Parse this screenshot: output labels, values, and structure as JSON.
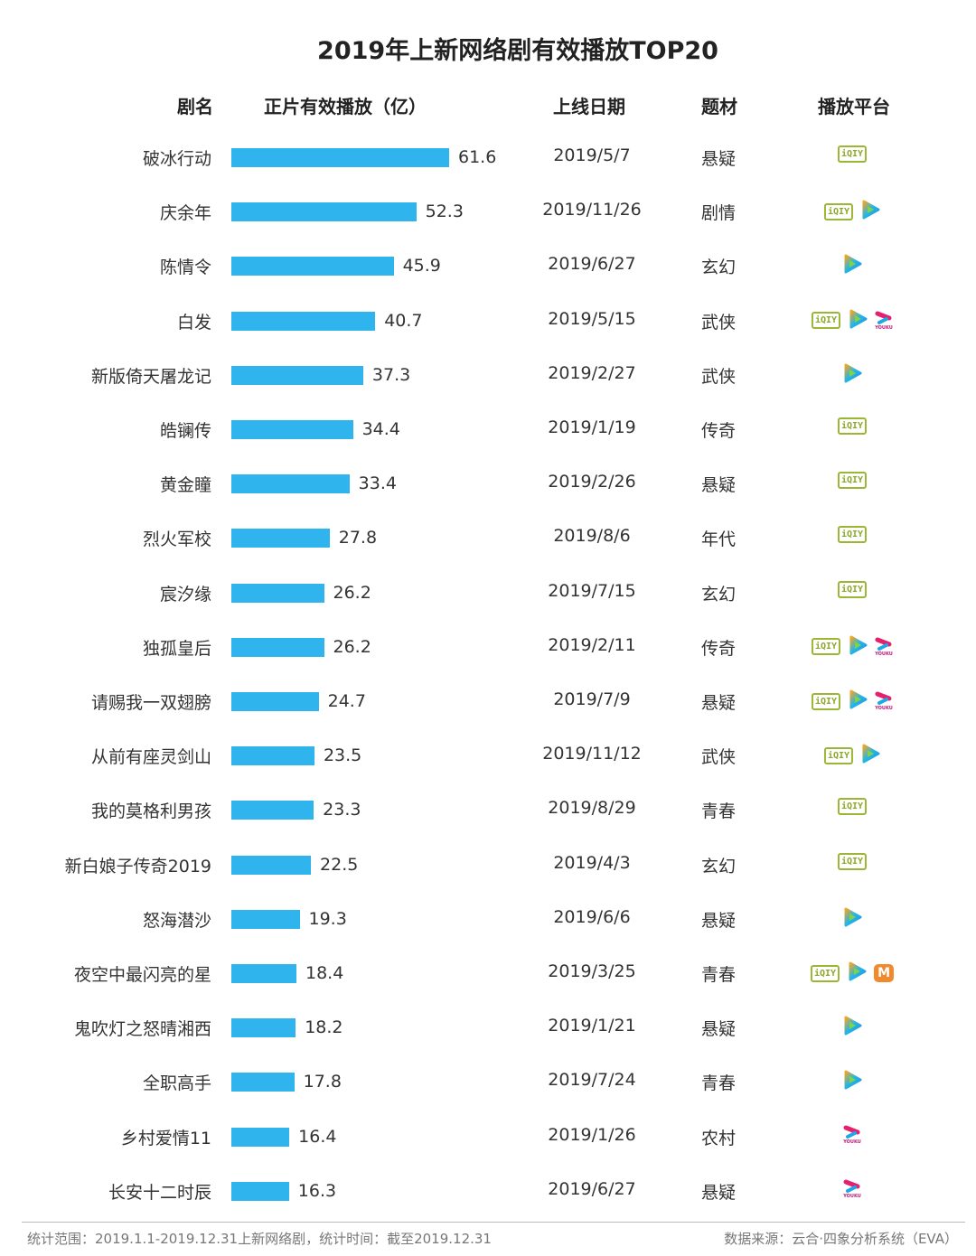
{
  "chart_data": {
    "type": "bar",
    "title": "2019年上新网络剧有效播放TOP20",
    "columns": [
      "剧名",
      "正片有效播放（亿）",
      "上线日期",
      "题材",
      "播放平台"
    ],
    "categories": [
      "破冰行动",
      "庆余年",
      "陈情令",
      "白发",
      "新版倚天屠龙记",
      "皓镧传",
      "黄金瞳",
      "烈火军校",
      "宸汐缘",
      "独孤皇后",
      "请赐我一双翅膀",
      "从前有座灵剑山",
      "我的莫格利男孩",
      "新白娘子传奇2019",
      "怒海潜沙",
      "夜空中最闪亮的星",
      "鬼吹灯之怒晴湘西",
      "全职高手",
      "乡村爱情11",
      "长安十二时辰"
    ],
    "values": [
      61.6,
      52.3,
      45.9,
      40.7,
      37.3,
      34.4,
      33.4,
      27.8,
      26.2,
      26.2,
      24.7,
      23.5,
      23.3,
      22.5,
      19.3,
      18.4,
      18.2,
      17.8,
      16.4,
      16.3
    ],
    "dates": [
      "2019/5/7",
      "2019/11/26",
      "2019/6/27",
      "2019/5/15",
      "2019/2/27",
      "2019/1/19",
      "2019/2/26",
      "2019/8/6",
      "2019/7/15",
      "2019/2/11",
      "2019/7/9",
      "2019/11/12",
      "2019/8/29",
      "2019/4/3",
      "2019/6/6",
      "2019/3/25",
      "2019/1/21",
      "2019/7/24",
      "2019/1/26",
      "2019/6/27"
    ],
    "genres": [
      "悬疑",
      "剧情",
      "玄幻",
      "武侠",
      "武侠",
      "传奇",
      "悬疑",
      "年代",
      "玄幻",
      "传奇",
      "悬疑",
      "武侠",
      "青春",
      "玄幻",
      "悬疑",
      "青春",
      "悬疑",
      "青春",
      "农村",
      "悬疑"
    ],
    "platforms": [
      [
        "iqiyi"
      ],
      [
        "iqiyi",
        "tencent"
      ],
      [
        "tencent"
      ],
      [
        "iqiyi",
        "tencent",
        "youku"
      ],
      [
        "tencent"
      ],
      [
        "iqiyi"
      ],
      [
        "iqiyi"
      ],
      [
        "iqiyi"
      ],
      [
        "iqiyi"
      ],
      [
        "iqiyi",
        "tencent",
        "youku"
      ],
      [
        "iqiyi",
        "tencent",
        "youku"
      ],
      [
        "iqiyi",
        "tencent"
      ],
      [
        "iqiyi"
      ],
      [
        "iqiyi"
      ],
      [
        "tencent"
      ],
      [
        "iqiyi",
        "tencent",
        "mango"
      ],
      [
        "tencent"
      ],
      [
        "tencent"
      ],
      [
        "youku"
      ],
      [
        "youku"
      ]
    ],
    "bar_color": "#2fb4ee"
  },
  "logos": {
    "iqiyi": "iQIY",
    "youku": "YOUKU",
    "mango": "M"
  },
  "footer": {
    "left": "统计范围：2019.1.1-2019.12.31上新网络剧，统计时间：截至2019.12.31",
    "right": "数据来源：云合·四象分析系统（EVA）"
  }
}
